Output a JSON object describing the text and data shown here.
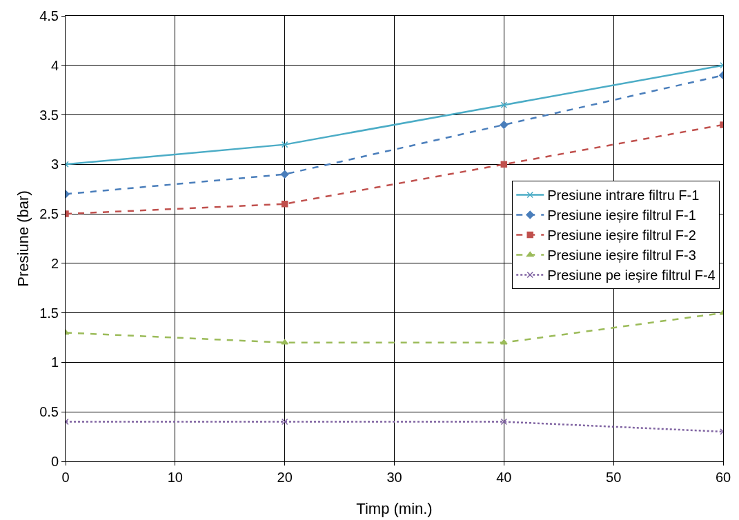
{
  "chart_data": {
    "type": "line",
    "xlabel": "Timp (min.)",
    "ylabel": "Presiune (bar)",
    "x": [
      0,
      20,
      40,
      60
    ],
    "series": [
      {
        "name": "Presiune intrare filtru F-1",
        "color": "#4bacc6",
        "values": [
          3.0,
          3.2,
          3.6,
          4.0
        ],
        "marker": "cross",
        "line_style": "solid"
      },
      {
        "name": "Presiune ieșire filtrul F-1",
        "color": "#4a7ebb",
        "values": [
          2.7,
          2.9,
          3.4,
          3.9
        ],
        "marker": "diamond",
        "line_style": "dashed"
      },
      {
        "name": "Presiune ieșire filtrul F-2",
        "color": "#c0504d",
        "values": [
          2.5,
          2.6,
          3.0,
          3.4
        ],
        "marker": "square",
        "line_style": "dashed"
      },
      {
        "name": "Presiune ieșire filtrul F-3",
        "color": "#9bbb59",
        "values": [
          1.3,
          1.2,
          1.2,
          1.5
        ],
        "marker": "triangle",
        "line_style": "dashed"
      },
      {
        "name": "Presiune pe ieșire filtrul F-4",
        "color": "#8064a2",
        "values": [
          0.4,
          0.4,
          0.4,
          0.3
        ],
        "marker": "cross",
        "line_style": "dotted"
      }
    ],
    "xlim": [
      0,
      60
    ],
    "xticks": [
      0,
      10,
      20,
      30,
      40,
      50,
      60
    ],
    "ylim": [
      0,
      4.5
    ],
    "yticks": [
      0,
      0.5,
      1,
      1.5,
      2,
      2.5,
      3,
      3.5,
      4,
      4.5
    ],
    "grid": true,
    "legend": "right"
  }
}
